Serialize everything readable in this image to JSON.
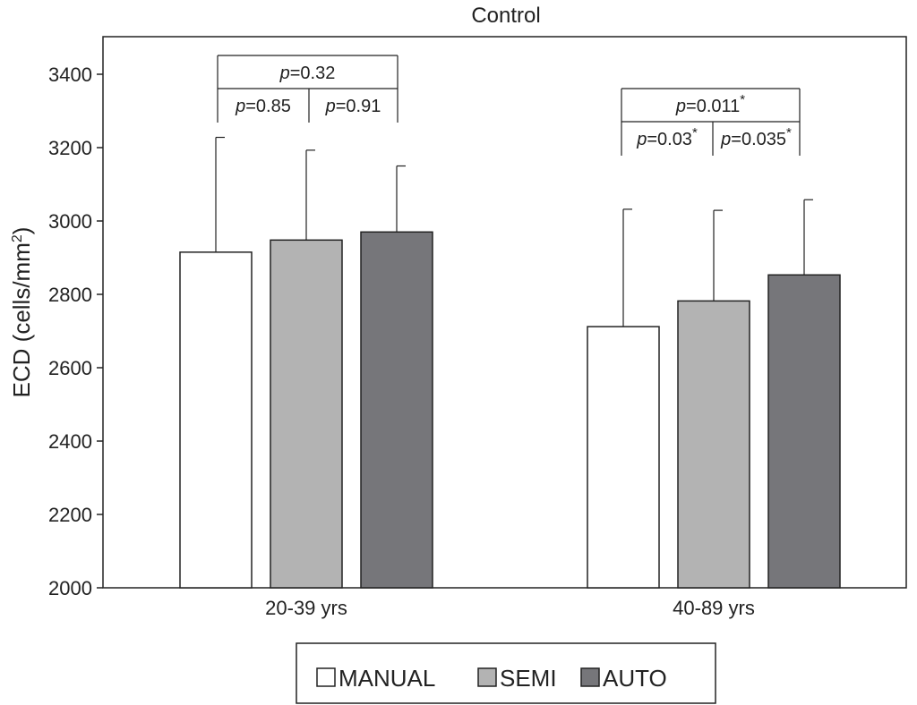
{
  "chart_data": {
    "type": "bar",
    "title": "Control",
    "xlabel": "",
    "ylabel": "ECD (cells/mm²)",
    "ylabel_main": "ECD (cells/mm",
    "ylabel_sup": "2",
    "ylabel_close": ")",
    "ylim": [
      2000,
      3400
    ],
    "yticks": [
      2000,
      2200,
      2400,
      2600,
      2800,
      3000,
      3200,
      3400
    ],
    "grid": false,
    "legend_position": "bottom",
    "categories": [
      "20-39 yrs",
      "40-89 yrs"
    ],
    "series": [
      {
        "name": "MANUAL",
        "color": "#ffffff",
        "values": [
          2915,
          2712
        ],
        "error_upper": [
          3228,
          3032
        ]
      },
      {
        "name": "SEMI",
        "color": "#b3b3b3",
        "values": [
          2948,
          2782
        ],
        "error_upper": [
          3193,
          3029
        ]
      },
      {
        "name": "AUTO",
        "color": "#76767a",
        "values": [
          2970,
          2853
        ],
        "error_upper": [
          3150,
          3058
        ]
      }
    ],
    "annotations": [
      {
        "category": "20-39 yrs",
        "overall": {
          "p_label": "p",
          "value": "=0.32",
          "star": ""
        },
        "pairs": [
          {
            "p_label": "p",
            "value": "=0.85",
            "star": ""
          },
          {
            "p_label": "p",
            "value": "=0.91",
            "star": ""
          }
        ]
      },
      {
        "category": "40-89 yrs",
        "overall": {
          "p_label": "p",
          "value": "=0.011",
          "star": "*"
        },
        "pairs": [
          {
            "p_label": "p",
            "value": "=0.03",
            "star": "*"
          },
          {
            "p_label": "p",
            "value": "=0.035",
            "star": "*"
          }
        ]
      }
    ]
  }
}
